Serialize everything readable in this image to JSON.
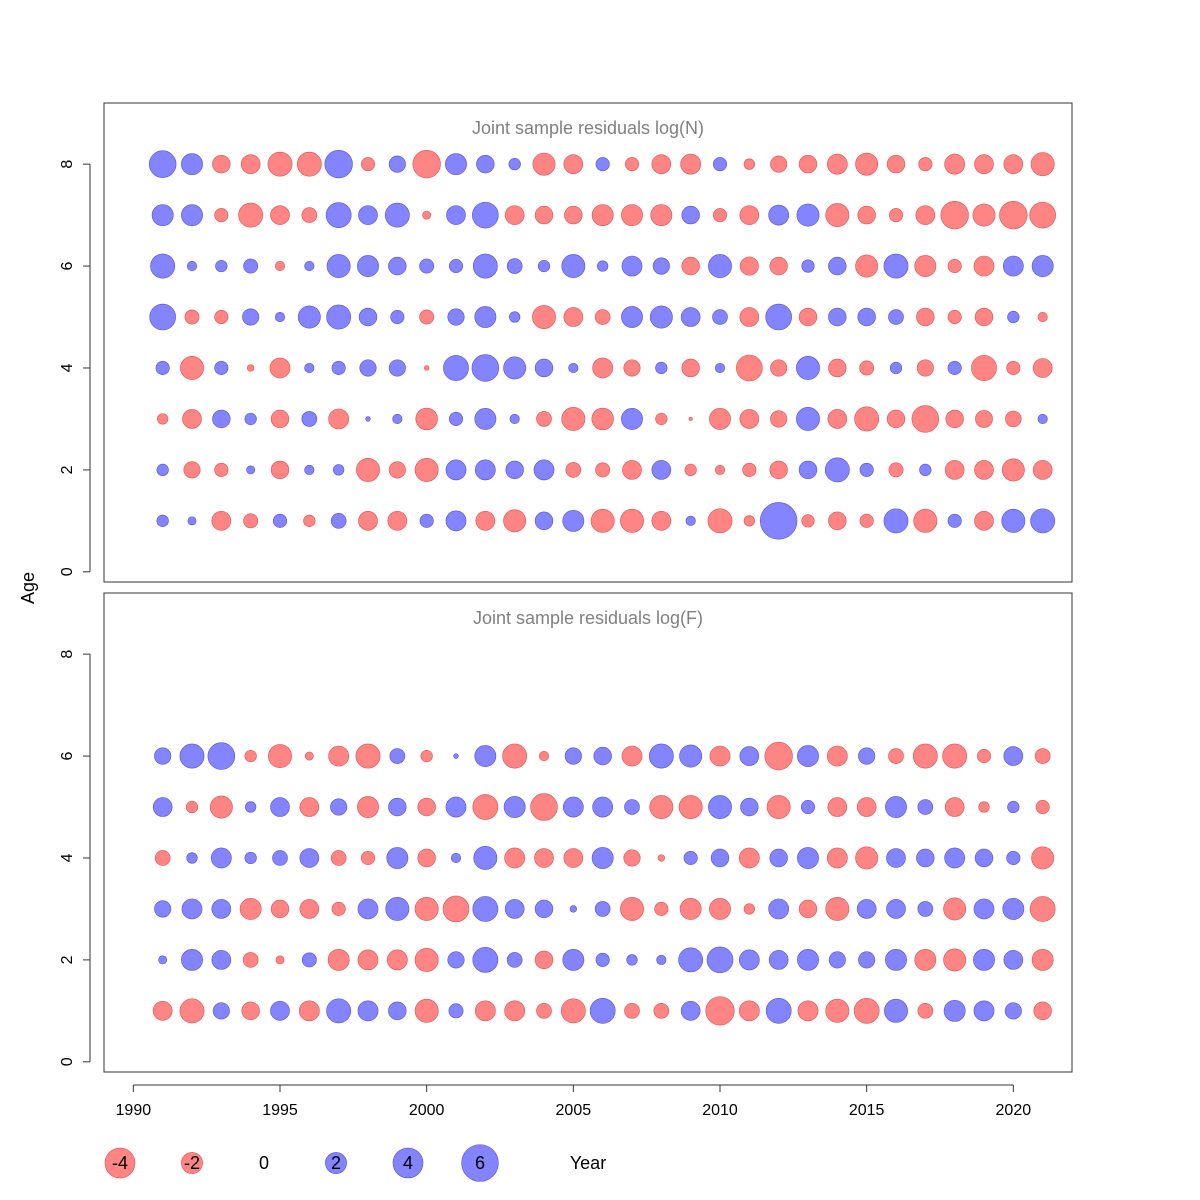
{
  "chart_data": {
    "type": "scatter",
    "ylabel": "Age",
    "xlabel": "Year",
    "colors": {
      "negative": "#FF6E6E",
      "positive": "#6E6EFF"
    },
    "x_ticks": [
      1990,
      1995,
      2000,
      2005,
      2010,
      2015,
      2020
    ],
    "y_ticks": [
      0,
      2,
      4,
      6,
      8
    ],
    "xlim": [
      1989,
      2022
    ],
    "ylim": [
      -0.2,
      9.2
    ],
    "years": [
      1991,
      1992,
      1993,
      1994,
      1995,
      1996,
      1997,
      1998,
      1999,
      2000,
      2001,
      2002,
      2003,
      2004,
      2005,
      2006,
      2007,
      2008,
      2009,
      2010,
      2011,
      2012,
      2013,
      2014,
      2015,
      2016,
      2017,
      2018,
      2019,
      2020,
      2021
    ],
    "legend": {
      "values": [
        -4,
        -2,
        0,
        2,
        4,
        6
      ],
      "labels": [
        "-4",
        "-2",
        "0",
        "2",
        "4",
        "6"
      ]
    },
    "panels": [
      {
        "title": "Joint sample residuals log(N)",
        "ages": [
          1,
          2,
          3,
          4,
          5,
          6,
          7,
          8
        ],
        "residuals": [
          [
            0.6,
            0.3,
            -1.6,
            -0.9,
            0.8,
            -0.6,
            1.0,
            -1.6,
            -1.6,
            0.8,
            1.8,
            -1.6,
            -2.2,
            1.4,
            2.0,
            -2.4,
            -2.4,
            -1.6,
            0.4,
            -2.6,
            -0.5,
            6.0,
            -0.7,
            -1.4,
            -0.8,
            2.6,
            -2.4,
            0.8,
            -1.6,
            2.4,
            2.6
          ],
          [
            0.6,
            -1.2,
            -0.8,
            0.3,
            -1.4,
            0.4,
            0.5,
            -2.4,
            -1.2,
            -2.4,
            1.8,
            1.8,
            1.4,
            1.8,
            -1.0,
            -0.9,
            -1.6,
            1.6,
            -0.6,
            -0.4,
            -0.8,
            -1.4,
            1.4,
            2.6,
            0.8,
            -0.9,
            0.6,
            -1.6,
            -1.6,
            -2.2,
            -1.6
          ],
          [
            -0.5,
            -1.6,
            1.4,
            0.6,
            -1.4,
            1.0,
            -1.8,
            0.1,
            0.4,
            -2.1,
            0.8,
            2.0,
            0.4,
            -1.0,
            -2.4,
            -2.1,
            2.0,
            -0.6,
            -0.05,
            -2.0,
            -1.6,
            -1.2,
            2.4,
            -1.6,
            -2.6,
            -1.4,
            -3.2,
            -1.4,
            -1.3,
            -1.1,
            0.4
          ],
          [
            0.8,
            -2.4,
            0.8,
            -0.2,
            -1.8,
            0.4,
            0.8,
            1.2,
            1.2,
            -0.1,
            2.8,
            3.2,
            2.2,
            1.4,
            0.4,
            -1.8,
            -1.2,
            0.6,
            -1.4,
            0.4,
            -3.0,
            -1.2,
            2.4,
            -1.4,
            -0.9,
            0.6,
            -1.2,
            0.8,
            -2.8,
            -0.8,
            -1.6
          ],
          [
            3.0,
            -0.9,
            -0.8,
            1.2,
            0.4,
            2.2,
            2.6,
            1.4,
            0.8,
            -0.9,
            1.2,
            2.0,
            0.5,
            -2.4,
            -1.6,
            -1.0,
            2.0,
            2.2,
            1.6,
            1.0,
            -1.6,
            3.0,
            -1.4,
            1.4,
            1.4,
            1.0,
            -1.4,
            -0.8,
            -1.4,
            0.6,
            -0.4
          ],
          [
            2.6,
            0.4,
            0.6,
            0.9,
            -0.4,
            0.4,
            2.4,
            2.0,
            1.4,
            0.9,
            0.8,
            2.6,
            1.0,
            0.6,
            2.4,
            0.5,
            1.8,
            1.2,
            -1.4,
            2.4,
            -1.5,
            -1.4,
            0.7,
            1.4,
            -2.2,
            2.6,
            -2.0,
            -0.8,
            -1.8,
            1.8,
            2.0
          ],
          [
            2.0,
            2.0,
            -0.8,
            -2.6,
            -1.6,
            -1.0,
            2.8,
            1.6,
            2.6,
            -0.3,
            1.6,
            3.0,
            -1.6,
            -1.4,
            -1.4,
            -2.0,
            -2.0,
            -2.0,
            1.4,
            -0.8,
            -1.6,
            1.8,
            2.2,
            -2.4,
            -1.4,
            -0.8,
            -1.6,
            -3.4,
            -2.2,
            -3.4,
            -3.0
          ],
          [
            3.2,
            2.0,
            -1.4,
            -1.6,
            -2.6,
            -2.6,
            3.4,
            -0.8,
            1.2,
            -3.4,
            2.0,
            1.4,
            0.6,
            -2.2,
            -1.6,
            0.8,
            -0.8,
            -1.6,
            -1.8,
            0.8,
            -0.5,
            -1.2,
            -1.4,
            -1.8,
            -2.2,
            -1.4,
            -0.8,
            -1.8,
            -1.6,
            -1.6,
            -2.4
          ]
        ]
      },
      {
        "title": "Joint sample residuals log(F)",
        "ages": [
          1,
          2,
          3,
          4,
          5,
          6
        ],
        "residuals": [
          [
            -1.6,
            -2.6,
            1.2,
            -1.4,
            1.6,
            -1.8,
            2.6,
            1.8,
            1.4,
            -2.4,
            0.9,
            -1.8,
            -1.8,
            -1.0,
            -2.6,
            2.8,
            -1.0,
            -1.0,
            1.6,
            -3.6,
            -1.8,
            2.8,
            -1.8,
            -2.4,
            -2.8,
            2.4,
            -1.0,
            2.0,
            1.8,
            1.2,
            -1.4
          ],
          [
            0.3,
            2.0,
            1.6,
            -1.0,
            -0.3,
            0.9,
            -2.0,
            -1.8,
            -1.8,
            -2.4,
            1.2,
            2.8,
            1.0,
            -1.4,
            2.0,
            0.8,
            0.5,
            0.4,
            2.6,
            3.0,
            1.8,
            1.6,
            2.0,
            1.2,
            1.2,
            2.0,
            -2.0,
            -2.2,
            2.0,
            1.6,
            -2.0
          ],
          [
            1.2,
            1.8,
            1.6,
            -2.0,
            -1.4,
            -1.6,
            -0.8,
            1.8,
            2.4,
            -2.4,
            -3.0,
            2.8,
            1.6,
            1.4,
            0.2,
            1.0,
            -2.4,
            -0.8,
            -2.0,
            -2.0,
            -0.5,
            1.8,
            -1.4,
            -2.4,
            1.6,
            1.6,
            1.0,
            -2.2,
            1.8,
            2.0,
            -2.8
          ],
          [
            -1.0,
            0.5,
            1.8,
            0.6,
            1.0,
            1.6,
            -1.0,
            -0.8,
            2.0,
            -1.4,
            0.4,
            2.4,
            -1.8,
            -1.6,
            -1.6,
            2.0,
            -1.2,
            -0.2,
            0.8,
            1.4,
            -1.8,
            1.4,
            2.0,
            -1.8,
            -2.2,
            1.6,
            1.4,
            1.8,
            1.4,
            0.8,
            -2.2
          ],
          [
            1.6,
            -0.6,
            -2.2,
            0.5,
            1.6,
            -1.6,
            1.2,
            -2.0,
            1.4,
            -1.4,
            1.8,
            -2.8,
            2.0,
            -3.2,
            1.8,
            1.8,
            1.0,
            -2.4,
            -2.4,
            2.4,
            1.4,
            -2.4,
            0.8,
            -1.6,
            -1.6,
            2.0,
            1.0,
            -1.6,
            -0.5,
            0.6,
            -0.8
          ],
          [
            1.2,
            2.6,
            3.2,
            -0.6,
            -2.4,
            -0.3,
            -1.8,
            -2.6,
            1.0,
            -0.6,
            0.1,
            2.0,
            -2.6,
            -0.4,
            1.2,
            1.4,
            -1.8,
            2.6,
            2.2,
            -1.8,
            1.6,
            -3.4,
            2.0,
            -1.8,
            1.2,
            -1.0,
            -2.6,
            -2.6,
            -0.8,
            1.6,
            -1.0
          ]
        ]
      }
    ]
  }
}
